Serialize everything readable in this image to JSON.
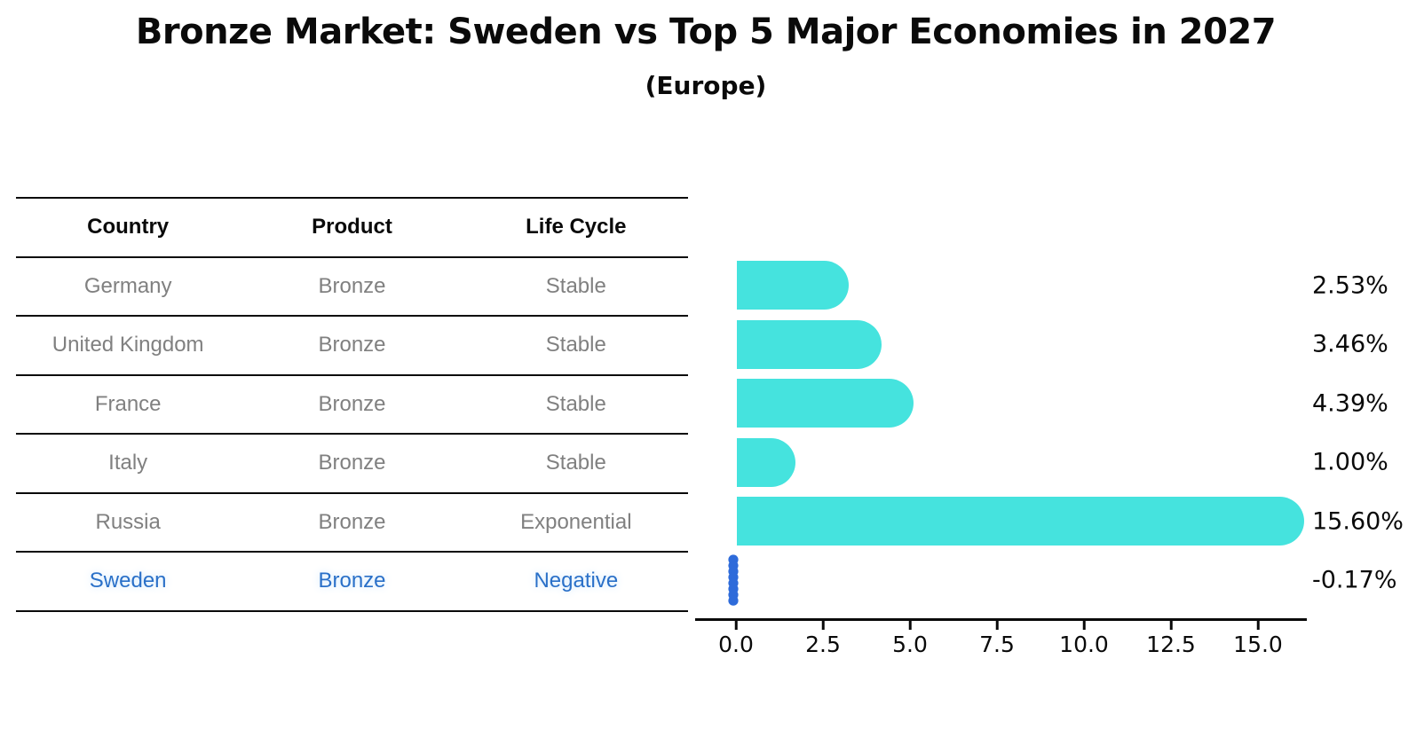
{
  "title": "Bronze Market: Sweden vs Top 5 Major Economies in 2027",
  "subtitle": "(Europe)",
  "table": {
    "headers": [
      "Country",
      "Product",
      "Life Cycle"
    ],
    "rows": [
      {
        "country": "Germany",
        "product": "Bronze",
        "life_cycle": "Stable",
        "highlight": false
      },
      {
        "country": "United Kingdom",
        "product": "Bronze",
        "life_cycle": "Stable",
        "highlight": false
      },
      {
        "country": "France",
        "product": "Bronze",
        "life_cycle": "Stable",
        "highlight": false
      },
      {
        "country": "Italy",
        "product": "Bronze",
        "life_cycle": "Stable",
        "highlight": false
      },
      {
        "country": "Russia",
        "product": "Bronze",
        "life_cycle": "Exponential",
        "highlight": false
      },
      {
        "country": "Sweden",
        "product": "Bronze",
        "life_cycle": "Negative",
        "highlight": true
      }
    ]
  },
  "chart_data": {
    "type": "bar",
    "orientation": "horizontal",
    "title": "Bronze Market: Sweden vs Top 5 Major Economies in 2027",
    "subtitle": "(Europe)",
    "categories": [
      "Germany",
      "United Kingdom",
      "France",
      "Italy",
      "Russia",
      "Sweden"
    ],
    "values": [
      2.53,
      3.46,
      4.39,
      1.0,
      15.6,
      -0.17
    ],
    "value_labels": [
      "2.53%",
      "3.46%",
      "4.39%",
      "1.00%",
      "15.60%",
      "-0.17%"
    ],
    "x_tick_labels": [
      "0.0",
      "2.5",
      "5.0",
      "7.5",
      "10.0",
      "12.5",
      "15.0"
    ],
    "x_tick_values": [
      0.0,
      2.5,
      5.0,
      7.5,
      10.0,
      12.5,
      15.0
    ],
    "xlim": [
      -1.2,
      16.4
    ],
    "grid": false,
    "legend": false,
    "bar_color": "#45e3de",
    "negative_bar_color": "#2e6bda",
    "highlight_text_color": "#2a70c8",
    "text_color": "#0a0a0a",
    "muted_text_color": "#808080"
  }
}
